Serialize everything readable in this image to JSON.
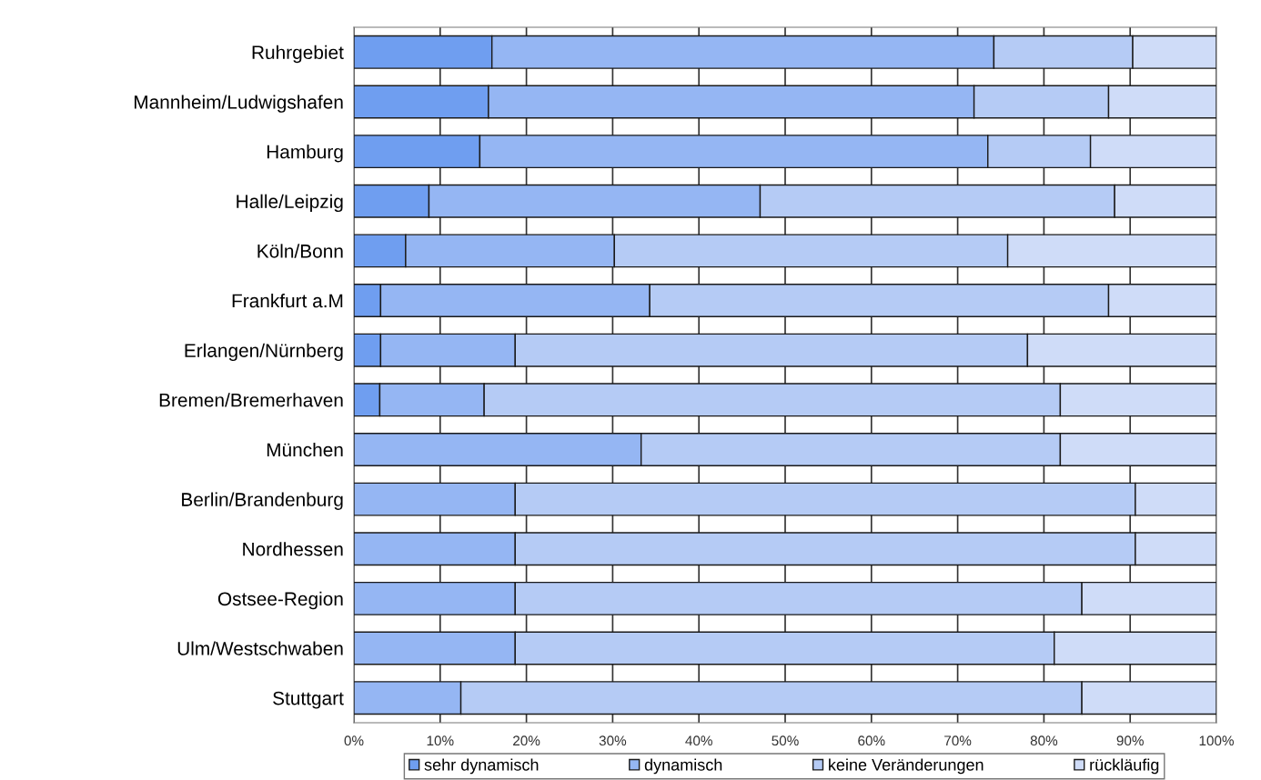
{
  "chart_data": {
    "type": "bar",
    "orientation": "horizontal",
    "stacked": true,
    "categories": [
      "Ruhrgebiet",
      "Mannheim/Ludwigshafen",
      "Hamburg",
      "Halle/Leipzig",
      "Köln/Bonn",
      "Frankfurt a.M",
      "Erlangen/Nürnberg",
      "Bremen/Bremerhaven",
      "München",
      "Berlin/Brandenburg",
      "Nordhessen",
      "Ostsee-Region",
      "Ulm/Westschwaben",
      "Stuttgart"
    ],
    "series": [
      {
        "name": "sehr dynamisch",
        "color": "#6f9ef0",
        "values": [
          16.0,
          15.6,
          14.6,
          8.7,
          6.0,
          3.1,
          3.1,
          3.0,
          0,
          0,
          0,
          0,
          0,
          0
        ]
      },
      {
        "name": "dynamisch",
        "color": "#95b6f3",
        "values": [
          58.2,
          56.3,
          58.9,
          38.4,
          24.2,
          31.2,
          15.6,
          12.1,
          33.3,
          18.7,
          18.7,
          18.7,
          18.7,
          12.4
        ]
      },
      {
        "name": "keine Veränderungen",
        "color": "#b5cbf5",
        "values": [
          16.1,
          15.6,
          11.9,
          41.1,
          45.6,
          53.2,
          59.4,
          66.8,
          48.6,
          71.9,
          71.9,
          65.7,
          62.5,
          72.0
        ]
      },
      {
        "name": "rückläufig",
        "color": "#cfdcf8",
        "values": [
          9.7,
          12.5,
          14.6,
          11.8,
          24.2,
          12.5,
          21.9,
          18.1,
          18.1,
          9.4,
          9.4,
          15.6,
          18.8,
          15.6
        ]
      }
    ],
    "xlim": [
      0,
      100
    ],
    "xticks": [
      {
        "value": 0,
        "label": "0%"
      },
      {
        "value": 10,
        "label": "10%"
      },
      {
        "value": 20,
        "label": "20%"
      },
      {
        "value": 30,
        "label": "30%"
      },
      {
        "value": 40,
        "label": "40%"
      },
      {
        "value": 50,
        "label": "50%"
      },
      {
        "value": 60,
        "label": "60%"
      },
      {
        "value": 70,
        "label": "70%"
      },
      {
        "value": 80,
        "label": "80%"
      },
      {
        "value": 90,
        "label": "90%"
      },
      {
        "value": 100,
        "label": "100%"
      }
    ],
    "grid": "x",
    "legend": "bottom"
  }
}
